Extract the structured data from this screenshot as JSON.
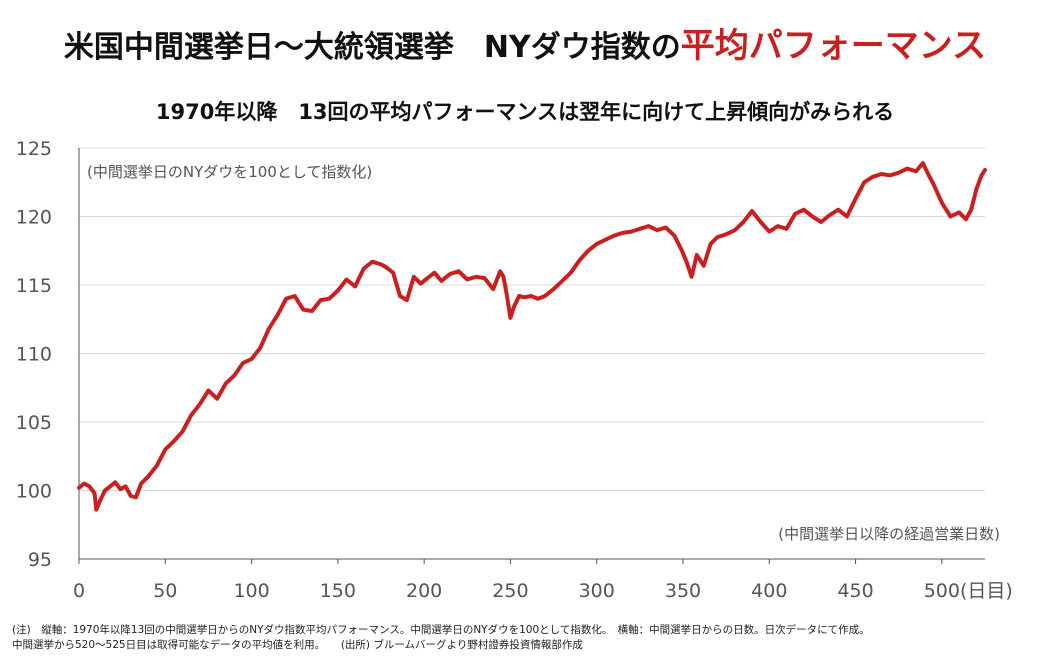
{
  "title": {
    "main": "米国中間選挙日～大統領選挙　NYダウ指数の",
    "highlight": "平均パフォーマンス"
  },
  "subtitle": "1970年以降　13回の平均パフォーマンスは翌年に向けて上昇傾向がみられる",
  "annotations": {
    "yaxis_note": "(中間選挙日のNYダウを100として指数化)",
    "xaxis_note": "(中間選挙日以降の経過営業日数)",
    "x_unit": "(日目)"
  },
  "footnotes": {
    "line1": "(注)　縦軸：1970年以降13回の中間選挙日からのNYダウ指数平均パフォーマンス。中間選挙日のNYダウを100として指数化。　横軸：中間選挙日からの日数。日次データにて作成。",
    "line2": "中間選挙から520～525日目は取得可能なデータの平均値を利用。　　(出所)  ブルームバーグより野村證券投資情報部作成"
  },
  "colors": {
    "line": "#c8201f",
    "highlight": "#c8201f",
    "grid": "#d9d9d9",
    "axis": "#555555"
  },
  "chart_data": {
    "type": "line",
    "xlim": [
      0,
      525
    ],
    "ylim": [
      95,
      125
    ],
    "xticks": [
      0,
      50,
      100,
      150,
      200,
      250,
      300,
      350,
      400,
      450,
      500
    ],
    "yticks": [
      95,
      100,
      105,
      110,
      115,
      120,
      125
    ],
    "grid": "horizontal",
    "series": [
      {
        "x": [
          0,
          3,
          6,
          9,
          10,
          12,
          15,
          18,
          21,
          24,
          27,
          30,
          33,
          36,
          40,
          45,
          50,
          55,
          60,
          65,
          70,
          75,
          80,
          85,
          90,
          95,
          100,
          105,
          110,
          115,
          120,
          125,
          130,
          135,
          140,
          145,
          150,
          155,
          160,
          165,
          170,
          175,
          178,
          182,
          186,
          190,
          194,
          198,
          202,
          206,
          210,
          215,
          220,
          225,
          230,
          235,
          240,
          244,
          246,
          248,
          250,
          252,
          255,
          258,
          262,
          266,
          270,
          275,
          280,
          285,
          290,
          295,
          300,
          305,
          310,
          315,
          320,
          325,
          330,
          335,
          340,
          345,
          349,
          352,
          355,
          358,
          362,
          366,
          370,
          375,
          380,
          385,
          390,
          395,
          400,
          405,
          410,
          415,
          420,
          425,
          430,
          435,
          440,
          445,
          450,
          455,
          460,
          465,
          470,
          475,
          480,
          485,
          489,
          492,
          495,
          500,
          505,
          510,
          514,
          517,
          520,
          523,
          525
        ],
        "y": [
          100.2,
          100.5,
          100.3,
          99.8,
          98.6,
          99.2,
          100.0,
          100.3,
          100.6,
          100.1,
          100.3,
          99.6,
          99.5,
          100.5,
          101.0,
          101.8,
          103.0,
          103.6,
          104.3,
          105.5,
          106.3,
          107.3,
          106.7,
          107.8,
          108.4,
          109.3,
          109.6,
          110.4,
          111.8,
          112.8,
          114.0,
          114.2,
          113.2,
          113.1,
          113.9,
          114.0,
          114.6,
          115.4,
          114.9,
          116.2,
          116.7,
          116.5,
          116.3,
          115.9,
          114.2,
          113.9,
          115.6,
          115.1,
          115.5,
          115.9,
          115.3,
          115.8,
          116.0,
          115.4,
          115.6,
          115.5,
          114.7,
          116.0,
          115.6,
          114.2,
          112.6,
          113.4,
          114.2,
          114.1,
          114.2,
          114.0,
          114.2,
          114.7,
          115.3,
          115.9,
          116.8,
          117.5,
          118.0,
          118.3,
          118.6,
          118.8,
          118.9,
          119.1,
          119.3,
          119.0,
          119.2,
          118.6,
          117.6,
          116.7,
          115.6,
          117.2,
          116.4,
          118.0,
          118.5,
          118.7,
          119.0,
          119.6,
          120.4,
          119.6,
          118.9,
          119.3,
          119.1,
          120.2,
          120.5,
          120.0,
          119.6,
          120.1,
          120.5,
          120.0,
          121.3,
          122.5,
          122.9,
          123.1,
          123.0,
          123.2,
          123.5,
          123.3,
          123.9,
          123.1,
          122.4,
          121.0,
          120.0,
          120.3,
          119.8,
          120.5,
          122.0,
          123.0,
          123.4
        ]
      }
    ]
  }
}
